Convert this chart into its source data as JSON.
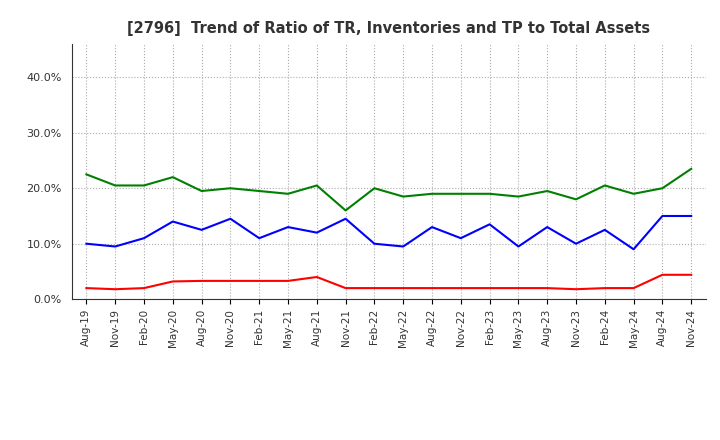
{
  "title": "[2796]  Trend of Ratio of TR, Inventories and TP to Total Assets",
  "x_labels": [
    "Aug-19",
    "Nov-19",
    "Feb-20",
    "May-20",
    "Aug-20",
    "Nov-20",
    "Feb-21",
    "May-21",
    "Aug-21",
    "Nov-21",
    "Feb-22",
    "May-22",
    "Aug-22",
    "Nov-22",
    "Feb-23",
    "May-23",
    "Aug-23",
    "Nov-23",
    "Feb-24",
    "May-24",
    "Aug-24",
    "Nov-24"
  ],
  "trade_receivables": [
    0.02,
    0.018,
    0.02,
    0.032,
    0.033,
    0.033,
    0.033,
    0.033,
    0.04,
    0.02,
    0.02,
    0.02,
    0.02,
    0.02,
    0.02,
    0.02,
    0.02,
    0.018,
    0.02,
    0.02,
    0.044,
    0.044
  ],
  "inventories": [
    0.1,
    0.095,
    0.11,
    0.14,
    0.125,
    0.145,
    0.11,
    0.13,
    0.12,
    0.145,
    0.1,
    0.095,
    0.13,
    0.11,
    0.135,
    0.095,
    0.13,
    0.1,
    0.125,
    0.09,
    0.15,
    0.15
  ],
  "trade_payables": [
    0.225,
    0.205,
    0.205,
    0.22,
    0.195,
    0.2,
    0.195,
    0.19,
    0.205,
    0.16,
    0.2,
    0.185,
    0.19,
    0.19,
    0.19,
    0.185,
    0.195,
    0.18,
    0.205,
    0.19,
    0.2,
    0.235
  ],
  "colors": {
    "trade_receivables": "#ff0000",
    "inventories": "#0000ff",
    "trade_payables": "#008000"
  },
  "ylim": [
    0.0,
    0.46
  ],
  "yticks": [
    0.0,
    0.1,
    0.2,
    0.3,
    0.4
  ],
  "background_color": "#ffffff",
  "grid_color": "#aaaaaa",
  "title_color": "#333333"
}
